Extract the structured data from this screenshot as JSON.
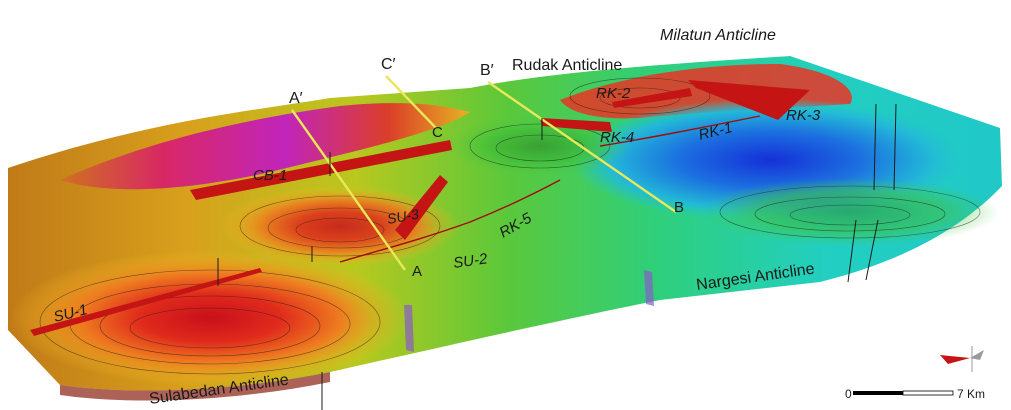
{
  "anticlines": {
    "rudak": "Rudak Anticline",
    "milatun": "Milatun Anticline",
    "nargesi": "Nargesi Anticline",
    "sulabedan": "Sulabedan Anticline"
  },
  "faults": {
    "rk2": "RK-2",
    "rk1": "RK-1",
    "rk3": "RK-3",
    "rk4": "RK-4",
    "rk5": "RK-5",
    "cb1": "CB-1",
    "su3": "SU-3",
    "su2": "SU-2",
    "su1": "SU-1"
  },
  "sections": {
    "a_prime": "A′",
    "a": "A",
    "b_prime": "B′",
    "b": "B",
    "c_prime": "C′",
    "c": "C"
  },
  "scale_bar": {
    "start": "0",
    "end": "7 Km"
  },
  "colors": {
    "deep_red": "#a50f0f",
    "red": "#e0221a",
    "orange": "#f08a1e",
    "yellow": "#e8d21a",
    "green": "#3fbf3a",
    "cyan": "#1fd0c8",
    "blue": "#1a3fd8",
    "magenta": "#c818c8",
    "fault_plane": "#c41414",
    "section_line": "#e8e85a"
  }
}
